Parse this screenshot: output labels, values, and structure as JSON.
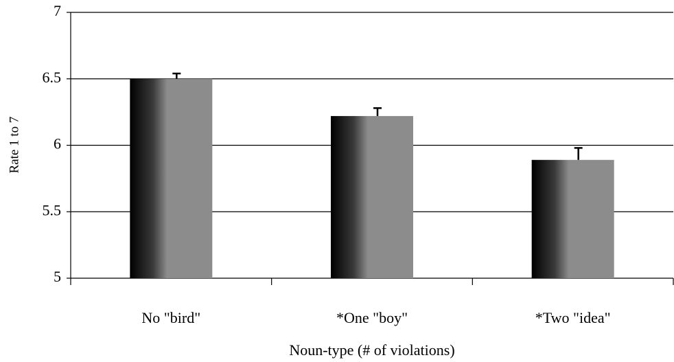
{
  "chart_data": {
    "type": "bar",
    "x_label": "Noun-type (# of violations)",
    "y_label": "Rate 1 to 7",
    "categories": [
      "No \"bird\"",
      "*One \"boy\"",
      "*Two \"idea\""
    ],
    "values": [
      6.5,
      6.22,
      5.89
    ],
    "errors": [
      0.04,
      0.06,
      0.09
    ],
    "color": "#8c8c8c",
    "ylim": [
      5,
      7
    ],
    "yticks": [
      5,
      5.5,
      6,
      6.5,
      7
    ],
    "grid": true
  }
}
